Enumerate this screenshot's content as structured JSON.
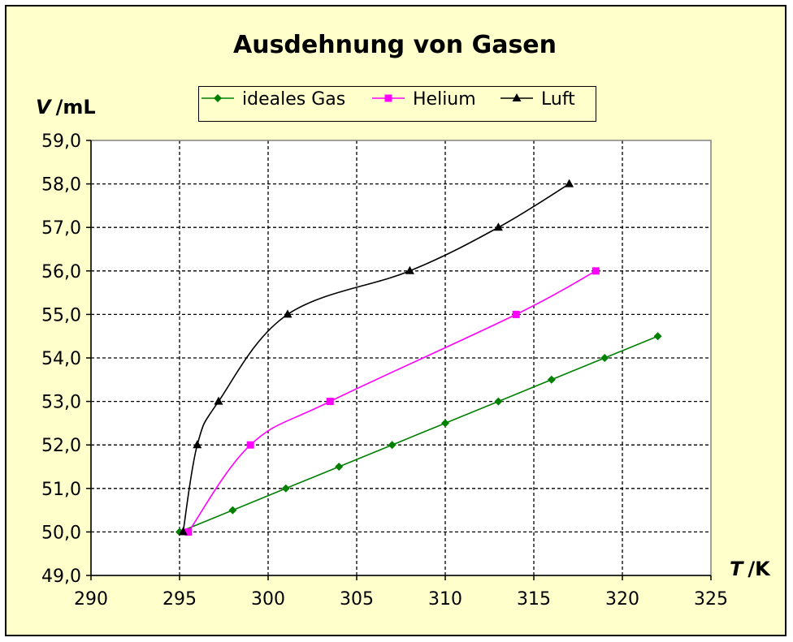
{
  "chart_data": {
    "type": "line",
    "title": "Ausdehnung von Gasen",
    "ylabel_symbol": "V",
    "ylabel_unit": "/mL",
    "xlabel_symbol": "T",
    "xlabel_unit": "/K",
    "xlim": [
      290,
      325
    ],
    "ylim": [
      49.0,
      59.0
    ],
    "x_ticks": [
      "290",
      "295",
      "300",
      "305",
      "310",
      "315",
      "320",
      "325"
    ],
    "y_ticks": [
      "49,0",
      "50,0",
      "51,0",
      "52,0",
      "53,0",
      "54,0",
      "55,0",
      "56,0",
      "57,0",
      "58,0",
      "59,0"
    ],
    "grid": true,
    "legend_position": "top",
    "series": [
      {
        "name": "ideales Gas",
        "color": "#008000",
        "marker": "diamond",
        "smooth": false,
        "points": [
          [
            295,
            50.0
          ],
          [
            298,
            50.5
          ],
          [
            301,
            51.0
          ],
          [
            304,
            51.5
          ],
          [
            307,
            52.0
          ],
          [
            310,
            52.5
          ],
          [
            313,
            53.0
          ],
          [
            316,
            53.5
          ],
          [
            319,
            54.0
          ],
          [
            322,
            54.5
          ]
        ]
      },
      {
        "name": "Helium",
        "color": "#ff00ff",
        "marker": "square",
        "smooth": true,
        "points": [
          [
            295.5,
            50.0
          ],
          [
            299,
            52.0
          ],
          [
            303.5,
            53.0
          ],
          [
            314,
            55.0
          ],
          [
            318.5,
            56.0
          ]
        ]
      },
      {
        "name": "Luft",
        "color": "#000000",
        "marker": "triangle",
        "smooth": true,
        "points": [
          [
            295.2,
            50.0
          ],
          [
            296,
            52.0
          ],
          [
            297.2,
            53.0
          ],
          [
            301.1,
            55.0
          ],
          [
            308,
            56.0
          ],
          [
            313,
            57.0
          ],
          [
            317,
            58.0
          ]
        ]
      }
    ]
  }
}
